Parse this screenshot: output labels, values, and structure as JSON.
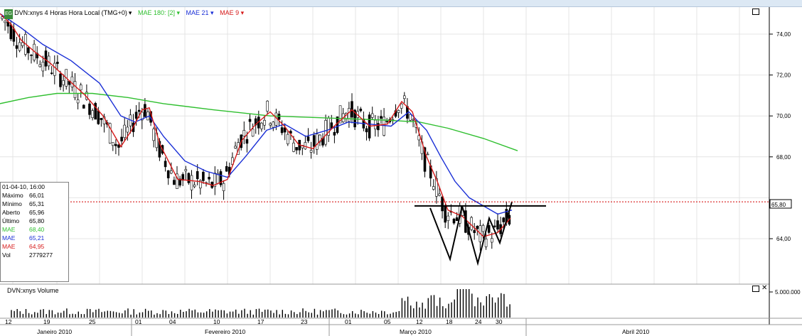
{
  "header": {
    "icon_label": "EG",
    "symbol": "DVN:xnys 4 Horas Hora Local (TMG+0)",
    "indicators": [
      {
        "label": "MAE 180: [2]",
        "color": "#2fbf2f"
      },
      {
        "label": "MAE 21",
        "color": "#1a2fd6"
      },
      {
        "label": "MAE 9",
        "color": "#d61a1a"
      }
    ]
  },
  "info_box": {
    "datetime": "01-04-10, 16:00",
    "rows": [
      {
        "key": "Máximo",
        "value": "66,01",
        "color": "#000000"
      },
      {
        "key": "Mínimo",
        "value": "65,31",
        "color": "#000000"
      },
      {
        "key": "Aberto",
        "value": "65,96",
        "color": "#000000"
      },
      {
        "key": "Último",
        "value": "65,80",
        "color": "#000000"
      },
      {
        "key": "MAE",
        "value": "68,40",
        "color": "#2fbf2f"
      },
      {
        "key": "MAE",
        "value": "65,21",
        "color": "#1a2fd6"
      },
      {
        "key": "MAE",
        "value": "64,95",
        "color": "#d61a1a"
      },
      {
        "key": "Vol",
        "value": "2779277",
        "color": "#000000"
      }
    ]
  },
  "price_axis": {
    "ticks": [
      "74,00",
      "72,00",
      "70,00",
      "68,00",
      "64,00"
    ],
    "last_price_label": "65,80"
  },
  "volume_panel": {
    "title": "DVN:xnys Volume",
    "tick": "5.000.000"
  },
  "time_axis": {
    "days": [
      "12",
      "19",
      "25",
      "01",
      "04",
      "10",
      "17",
      "23",
      "01",
      "05",
      "12",
      "18",
      "24",
      "30"
    ],
    "months": [
      "Janeiro 2010",
      "Fevereiro 2010",
      "Março 2010",
      "Abril 2010"
    ]
  },
  "chart_data": {
    "type": "candlestick",
    "ylim": [
      62.5,
      75.2
    ],
    "last_price": 65.8,
    "series": [
      {
        "name": "MAE 180",
        "color": "#2fbf2f",
        "values": [
          [
            0,
            70.6
          ],
          [
            40,
            70.9
          ],
          [
            80,
            71.1
          ],
          [
            130,
            71.1
          ],
          [
            180,
            70.9
          ],
          [
            230,
            70.6
          ],
          [
            300,
            70.3
          ],
          [
            380,
            70.0
          ],
          [
            460,
            69.9
          ],
          [
            540,
            69.8
          ],
          [
            590,
            69.7
          ],
          [
            630,
            69.4
          ],
          [
            680,
            68.9
          ],
          [
            728,
            68.3
          ]
        ]
      },
      {
        "name": "MAE 21",
        "color": "#1a2fd6",
        "values": [
          [
            0,
            75.0
          ],
          [
            30,
            74.3
          ],
          [
            60,
            73.5
          ],
          [
            100,
            72.7
          ],
          [
            140,
            71.6
          ],
          [
            170,
            70.0
          ],
          [
            190,
            69.7
          ],
          [
            210,
            70.0
          ],
          [
            230,
            69.0
          ],
          [
            260,
            67.8
          ],
          [
            290,
            67.3
          ],
          [
            320,
            67.0
          ],
          [
            345,
            68.0
          ],
          [
            375,
            69.3
          ],
          [
            400,
            69.6
          ],
          [
            430,
            69.0
          ],
          [
            460,
            69.3
          ],
          [
            490,
            69.7
          ],
          [
            520,
            69.6
          ],
          [
            550,
            69.5
          ],
          [
            575,
            70.2
          ],
          [
            600,
            69.3
          ],
          [
            620,
            68.0
          ],
          [
            640,
            66.8
          ],
          [
            660,
            66.0
          ],
          [
            680,
            65.6
          ],
          [
            700,
            65.2
          ],
          [
            720,
            65.4
          ]
        ]
      },
      {
        "name": "MAE 9",
        "color": "#d61a1a",
        "values": [
          [
            0,
            75.0
          ],
          [
            15,
            74.5
          ],
          [
            30,
            73.7
          ],
          [
            50,
            73.1
          ],
          [
            70,
            72.6
          ],
          [
            95,
            71.8
          ],
          [
            120,
            71.0
          ],
          [
            145,
            70.0
          ],
          [
            170,
            68.5
          ],
          [
            185,
            69.3
          ],
          [
            200,
            70.3
          ],
          [
            210,
            70.4
          ],
          [
            225,
            68.6
          ],
          [
            250,
            66.9
          ],
          [
            280,
            66.8
          ],
          [
            300,
            66.6
          ],
          [
            320,
            66.9
          ],
          [
            340,
            68.8
          ],
          [
            360,
            69.6
          ],
          [
            380,
            70.2
          ],
          [
            400,
            69.5
          ],
          [
            420,
            68.6
          ],
          [
            440,
            68.4
          ],
          [
            470,
            69.5
          ],
          [
            495,
            70.3
          ],
          [
            520,
            69.5
          ],
          [
            545,
            69.6
          ],
          [
            565,
            70.7
          ],
          [
            580,
            70.2
          ],
          [
            600,
            68.0
          ],
          [
            615,
            66.8
          ],
          [
            630,
            65.4
          ],
          [
            650,
            65.1
          ],
          [
            665,
            64.6
          ],
          [
            680,
            64.1
          ],
          [
            700,
            64.3
          ],
          [
            718,
            65.0
          ]
        ]
      }
    ],
    "pattern_lines": {
      "neckline": [
        [
          583,
          65.6
        ],
        [
          768,
          65.6
        ]
      ],
      "w_shape": [
        [
          605,
          65.5
        ],
        [
          633,
          63.0
        ],
        [
          650,
          65.6
        ],
        [
          672,
          62.8
        ],
        [
          688,
          65.0
        ],
        [
          703,
          63.8
        ],
        [
          720,
          65.8
        ]
      ]
    }
  }
}
